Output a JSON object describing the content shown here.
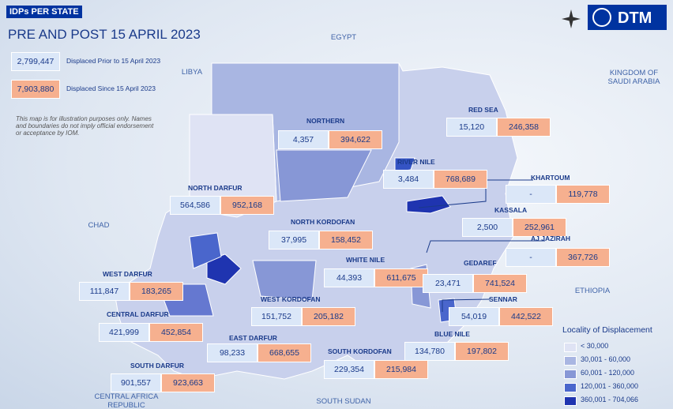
{
  "header": {
    "badge": "IDPs PER STATE",
    "title": "PRE AND POST 15 APRIL 2023"
  },
  "summary": [
    {
      "value": "2,799,447",
      "label": "Displaced Prior to 15 April 2023"
    },
    {
      "value": "7,903,880",
      "label": "Displaced Since 15 April 2023"
    }
  ],
  "disclaimer": "This map is for illustration purposes only. Names and boundaries do not imply official endorsement or acceptance by IOM.",
  "logo": "DTM",
  "countries": [
    "EGYPT",
    "LIBYA",
    "KINGDOM OF SAUDI ARABIA",
    "CHAD",
    "ETHIOPIA",
    "SOUTH SUDAN",
    "CENTRAL AFRICA REPUBLIC"
  ],
  "states": [
    {
      "name": "NORTHERN",
      "prior": "4,357",
      "since": "394,622"
    },
    {
      "name": "RED SEA",
      "prior": "15,120",
      "since": "246,358"
    },
    {
      "name": "RIVER NILE",
      "prior": "3,484",
      "since": "768,689"
    },
    {
      "name": "KHARTOUM",
      "prior": "-",
      "since": "119,778"
    },
    {
      "name": "NORTH DARFUR",
      "prior": "564,586",
      "since": "952,168"
    },
    {
      "name": "KASSALA",
      "prior": "2,500",
      "since": "252,961"
    },
    {
      "name": "NORTH KORDOFAN",
      "prior": "37,995",
      "since": "158,452"
    },
    {
      "name": "AJ JAZIRAH",
      "prior": "-",
      "since": "367,726"
    },
    {
      "name": "WHITE NILE",
      "prior": "44,393",
      "since": "611,675"
    },
    {
      "name": "GEDAREF",
      "prior": "23,471",
      "since": "741,524"
    },
    {
      "name": "WEST DARFUR",
      "prior": "111,847",
      "since": "183,265"
    },
    {
      "name": "SENNAR",
      "prior": "54,019",
      "since": "442,522"
    },
    {
      "name": "WEST KORDOFAN",
      "prior": "151,752",
      "since": "205,182"
    },
    {
      "name": "CENTRAL DARFUR",
      "prior": "421,999",
      "since": "452,854"
    },
    {
      "name": "EAST DARFUR",
      "prior": "98,233",
      "since": "668,655"
    },
    {
      "name": "BLUE NILE",
      "prior": "134,780",
      "since": "197,802"
    },
    {
      "name": "SOUTH KORDOFAN",
      "prior": "229,354",
      "since": "215,984"
    },
    {
      "name": "SOUTH DARFUR",
      "prior": "901,557",
      "since": "923,663"
    }
  ],
  "legend": {
    "title": "Locality of Displacement",
    "classes": [
      "< 30,000",
      "30,001 - 60,000",
      "60,001 - 120,000",
      "120,001 - 360,000",
      "360,001 - 704,066"
    ]
  }
}
